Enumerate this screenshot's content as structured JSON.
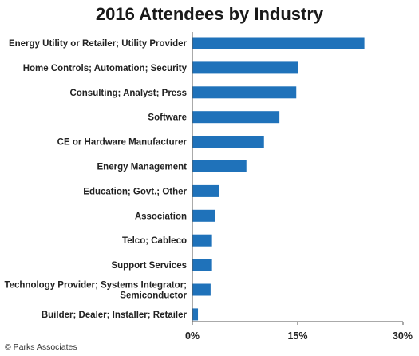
{
  "chart_data": {
    "type": "bar",
    "orientation": "horizontal",
    "title": "2016 Attendees by Industry",
    "categories": [
      "Energy Utility or Retailer; Utility Provider",
      "Home Controls; Automation; Security",
      "Consulting; Analyst; Press",
      "Software",
      "CE or Hardware Manufacturer",
      "Energy Management",
      "Education; Govt.; Other",
      "Association",
      "Telco; Cableco",
      "Support Services",
      "Technology Provider; Systems Integrator; Semiconductor",
      "Builder; Dealer; Installer; Retailer"
    ],
    "category_lines": [
      [
        "Energy Utility or Retailer; Utility Provider"
      ],
      [
        "Home Controls; Automation; Security"
      ],
      [
        "Consulting; Analyst; Press"
      ],
      [
        "Software"
      ],
      [
        "CE or Hardware Manufacturer"
      ],
      [
        "Energy Management"
      ],
      [
        "Education; Govt.; Other"
      ],
      [
        "Association"
      ],
      [
        "Telco; Cableco"
      ],
      [
        "Support Services"
      ],
      [
        "Technology Provider; Systems Integrator;",
        "Semiconductor"
      ],
      [
        "Builder; Dealer; Installer; Retailer"
      ]
    ],
    "values": [
      24.5,
      15.1,
      14.8,
      12.4,
      10.2,
      7.7,
      3.8,
      3.2,
      2.8,
      2.8,
      2.6,
      0.8
    ],
    "unit": "%",
    "xlim": [
      0,
      30
    ],
    "xticks": [
      0,
      15,
      30
    ],
    "xtick_labels": [
      "0%",
      "15%",
      "30%"
    ],
    "xlabel": "",
    "ylabel": "",
    "grid": false,
    "bar_color": "#1f72ba",
    "axis_color": "#555555"
  },
  "source": "© Parks Associates"
}
